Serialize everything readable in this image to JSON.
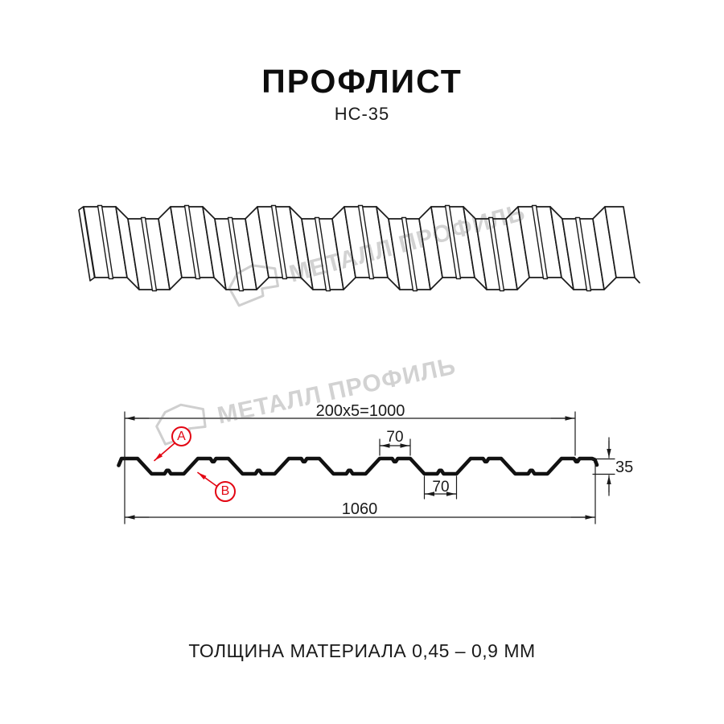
{
  "title": "ПРОФЛИСТ",
  "subtitle": "НС-35",
  "caption": "ТОЛЩИНА МАТЕРИАЛА 0,45 – 0,9 ММ",
  "watermark": {
    "text": "МЕТАЛЛ ПРОФИЛЬ"
  },
  "diagram": {
    "dim_top": "200x5=1000",
    "dim_bottom": "1060",
    "dim_height": "35",
    "dim_crest_width": "70",
    "dim_valley_width": "70",
    "marker_a": "A",
    "marker_b": "B"
  },
  "colors": {
    "accent_red": "#e30613",
    "line": "#1a1a1a",
    "watermark_gray": "#d2d2d2"
  }
}
